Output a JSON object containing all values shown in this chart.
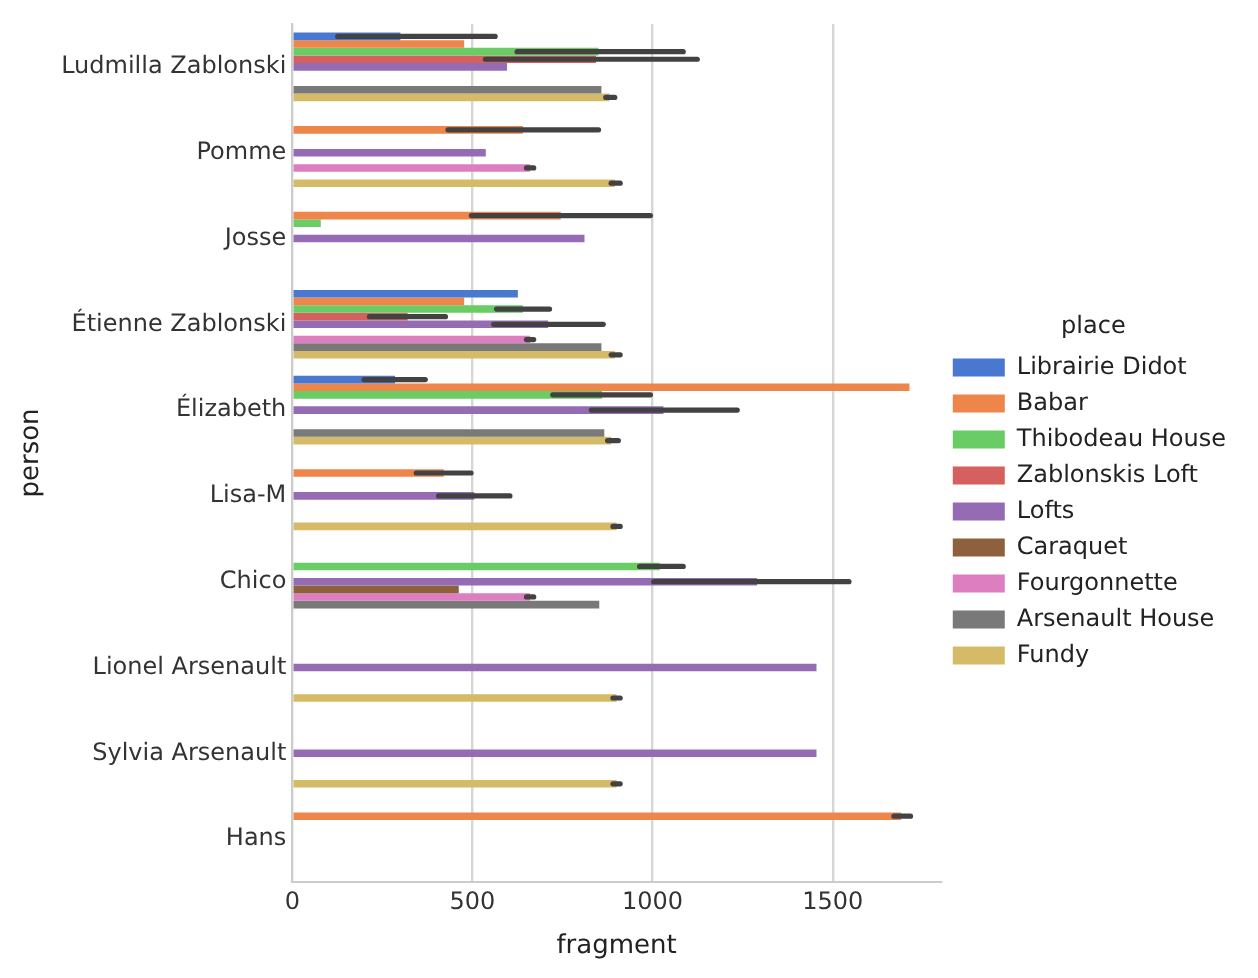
{
  "chart_data": {
    "type": "bar",
    "orientation": "horizontal",
    "xlabel": "fragment",
    "ylabel": "person",
    "legend_title": "place",
    "legend": "right",
    "grid": "x",
    "categories": [
      "Ludmilla Zablonski",
      "Pomme",
      "Josse",
      "Étienne Zablonski",
      "Élizabeth",
      "Lisa-M",
      "Chico",
      "Lionel Arsenault",
      "Sylvia Arsenault",
      "Hans"
    ],
    "xlim": [
      0,
      1800
    ],
    "xticks": [
      0,
      500,
      1000,
      1500
    ],
    "series": [
      {
        "name": "Librairie Didot",
        "color": "#4878d0",
        "values": [
          300,
          null,
          null,
          626,
          285,
          null,
          null,
          null,
          null,
          null
        ],
        "errors": [
          [
            126,
            563
          ],
          null,
          null,
          null,
          [
            199,
            369
          ],
          null,
          null,
          null,
          null,
          null
        ]
      },
      {
        "name": "Babar",
        "color": "#ee854a",
        "values": [
          477,
          640,
          745,
          477,
          1713,
          420,
          null,
          null,
          null,
          1690
        ],
        "errors": [
          null,
          [
            432,
            850
          ],
          [
            497,
            994
          ],
          null,
          null,
          [
            344,
            496
          ],
          null,
          null,
          null,
          [
            1670,
            1716
          ]
        ]
      },
      {
        "name": "Thibodeau House",
        "color": "#6acc64",
        "values": [
          850,
          null,
          79,
          640,
          860,
          null,
          1020,
          null,
          null,
          null
        ],
        "errors": [
          [
            624,
            1085
          ],
          null,
          null,
          [
            567,
            714
          ],
          [
            723,
            994
          ],
          null,
          [
            964,
            1085
          ],
          null,
          null,
          null
        ]
      },
      {
        "name": "Zablonskis Loft",
        "color": "#d65f5f",
        "values": [
          843,
          null,
          null,
          320,
          null,
          null,
          null,
          null,
          null,
          null
        ],
        "errors": [
          [
            536,
            1124
          ],
          null,
          null,
          [
            214,
            425
          ],
          null,
          null,
          null,
          null,
          null,
          null
        ]
      },
      {
        "name": "Lofts",
        "color": "#956cb4",
        "values": [
          596,
          537,
          811,
          710,
          1030,
          505,
          1290,
          1455,
          1455,
          null
        ],
        "errors": [
          null,
          null,
          null,
          [
            559,
            863
          ],
          [
            830,
            1235
          ],
          [
            406,
            604
          ],
          [
            1003,
            1545
          ],
          null,
          null,
          null
        ]
      },
      {
        "name": "Caraquet",
        "color": "#8c613c",
        "values": [
          null,
          null,
          null,
          null,
          null,
          null,
          462,
          null,
          null,
          null
        ],
        "errors": [
          null,
          null,
          null,
          null,
          null,
          null,
          null,
          null,
          null,
          null
        ]
      },
      {
        "name": "Fourgonnette",
        "color": "#dc7ec0",
        "values": [
          null,
          660,
          null,
          660,
          null,
          null,
          660,
          null,
          null,
          null
        ],
        "errors": [
          null,
          [
            650,
            670
          ],
          null,
          [
            650,
            670
          ],
          null,
          null,
          [
            650,
            670
          ],
          null,
          null,
          null
        ]
      },
      {
        "name": "Arsenault House",
        "color": "#797979",
        "values": [
          858,
          null,
          null,
          858,
          866,
          null,
          852,
          null,
          null,
          null
        ],
        "errors": [
          null,
          null,
          null,
          null,
          null,
          null,
          null,
          null,
          null,
          null
        ]
      },
      {
        "name": "Fundy",
        "color": "#d5bb67",
        "values": [
          880,
          895,
          null,
          895,
          885,
          900,
          null,
          900,
          900,
          null
        ],
        "errors": [
          [
            870,
            895
          ],
          [
            885,
            910
          ],
          null,
          [
            885,
            910
          ],
          [
            875,
            905
          ],
          [
            890,
            910
          ],
          null,
          [
            890,
            910
          ],
          [
            890,
            910
          ],
          null
        ]
      }
    ]
  }
}
